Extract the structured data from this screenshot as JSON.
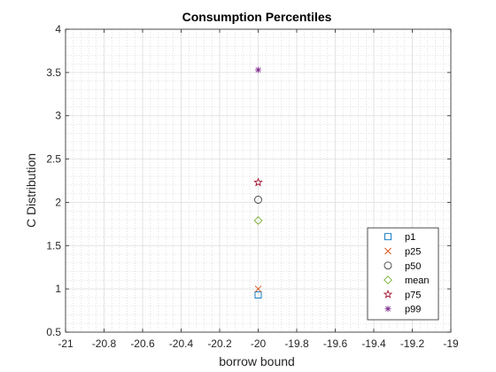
{
  "chart_data": {
    "type": "scatter",
    "title": "Consumption Percentiles",
    "xlabel": "borrow bound",
    "ylabel": "C Distribution",
    "xlim": [
      -21,
      -19
    ],
    "ylim": [
      0.5,
      4
    ],
    "xticks": [
      "-21",
      "-20.8",
      "-20.6",
      "-20.4",
      "-20.2",
      "-20",
      "-19.8",
      "-19.6",
      "-19.4",
      "-19.2",
      "-19"
    ],
    "yticks": [
      "0.5",
      "1",
      "1.5",
      "2",
      "2.5",
      "3",
      "3.5",
      "4"
    ],
    "grid": true,
    "minor_grid": true,
    "legend_position": "bottom-right",
    "series": [
      {
        "name": "p1",
        "marker": "square",
        "color": "#0072BD",
        "x": [
          -20
        ],
        "y": [
          0.93
        ]
      },
      {
        "name": "p25",
        "marker": "x",
        "color": "#D95319",
        "x": [
          -20
        ],
        "y": [
          1.0
        ]
      },
      {
        "name": "p50",
        "marker": "circle",
        "color": "#404040",
        "x": [
          -20
        ],
        "y": [
          2.03
        ]
      },
      {
        "name": "mean",
        "marker": "diamond",
        "color": "#77AC30",
        "x": [
          -20
        ],
        "y": [
          1.79
        ]
      },
      {
        "name": "p75",
        "marker": "pentagram",
        "color": "#A2142F",
        "x": [
          -20
        ],
        "y": [
          2.23
        ]
      },
      {
        "name": "p99",
        "marker": "asterisk",
        "color": "#7E2F8E",
        "x": [
          -20
        ],
        "y": [
          3.53
        ]
      }
    ]
  }
}
